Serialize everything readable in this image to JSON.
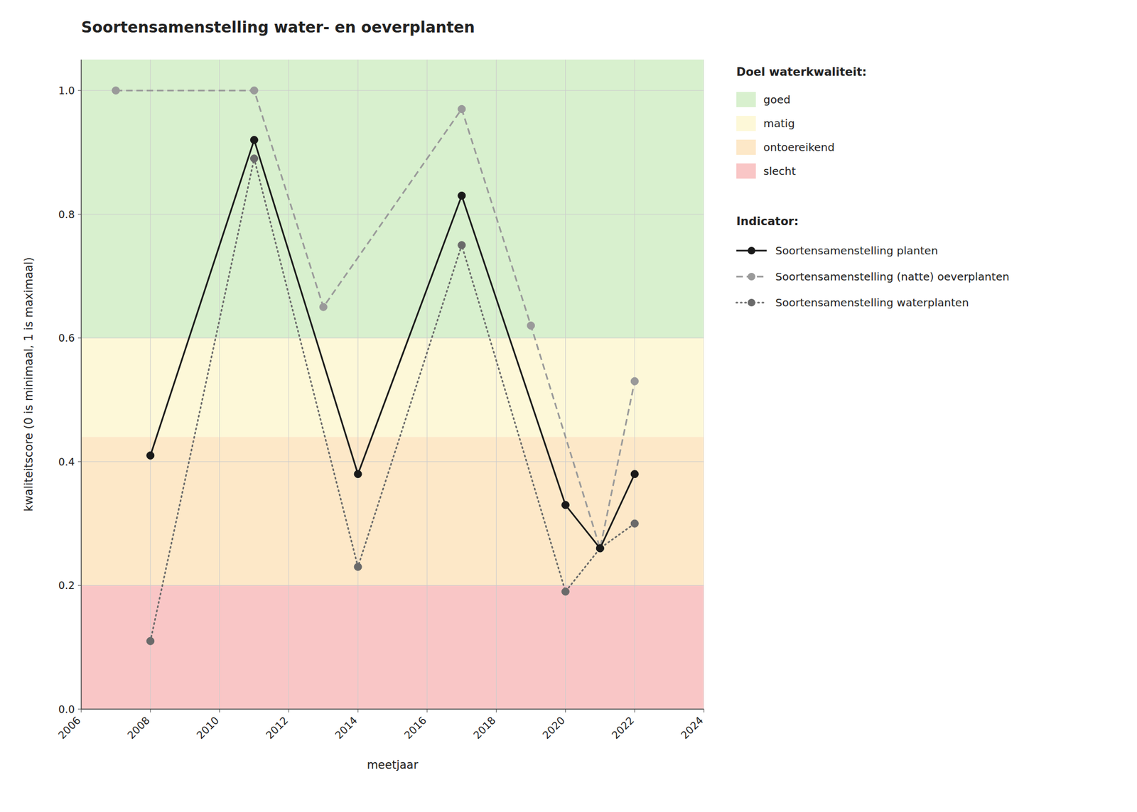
{
  "chart_data": {
    "type": "line",
    "title": "Soortensamenstelling water- en oeverplanten",
    "x_label": "meetjaar",
    "y_label": "kwaliteitscore (0 is minimaal, 1 is maximaal)",
    "xlim": [
      2006,
      2024
    ],
    "ylim": [
      0.0,
      1.05
    ],
    "xticks": [
      2006,
      2008,
      2010,
      2012,
      2014,
      2016,
      2018,
      2020,
      2022,
      2024
    ],
    "yticks": [
      {
        "value": 0.0,
        "label": "0.0"
      },
      {
        "value": 0.2,
        "label": "0.2"
      },
      {
        "value": 0.4,
        "label": "0.4"
      },
      {
        "value": 0.6,
        "label": "0.6"
      },
      {
        "value": 0.8,
        "label": "0.8"
      },
      {
        "value": 1.0,
        "label": "1.0"
      }
    ],
    "grid": true,
    "band_legend_title": "Doel waterkwaliteit:",
    "legend_title": "Indicator:",
    "bands": [
      {
        "name": "slecht",
        "from": 0.0,
        "to": 0.2,
        "color": "#f9c6c6"
      },
      {
        "name": "ontoereikend",
        "from": 0.2,
        "to": 0.44,
        "color": "#fde8c8"
      },
      {
        "name": "matig",
        "from": 0.44,
        "to": 0.6,
        "color": "#fdf8d8"
      },
      {
        "name": "goed",
        "from": 0.6,
        "to": 1.05,
        "color": "#d8f0ce"
      }
    ],
    "series": [
      {
        "name": "Soortensamenstelling planten",
        "color": "#1a1a1a",
        "line_style": "solid",
        "marker": "circle",
        "x": [
          2008,
          2011,
          2014,
          2017,
          2020,
          2021,
          2022
        ],
        "values": [
          0.41,
          0.92,
          0.38,
          0.83,
          0.33,
          0.26,
          0.38
        ]
      },
      {
        "name": "Soortensamenstelling (natte) oeverplanten",
        "color": "#9a9a9a",
        "line_style": "dashed",
        "marker": "circle",
        "x": [
          2007,
          2011,
          2013,
          2017,
          2019,
          2021,
          2022
        ],
        "values": [
          1.0,
          1.0,
          0.65,
          0.97,
          0.62,
          0.26,
          0.53
        ]
      },
      {
        "name": "Soortensamenstelling waterplanten",
        "color": "#6a6a6a",
        "line_style": "dotted",
        "marker": "circle",
        "x": [
          2008,
          2011,
          2014,
          2017,
          2020,
          2021,
          2022
        ],
        "values": [
          0.11,
          0.89,
          0.23,
          0.75,
          0.19,
          0.26,
          0.3
        ]
      }
    ]
  }
}
